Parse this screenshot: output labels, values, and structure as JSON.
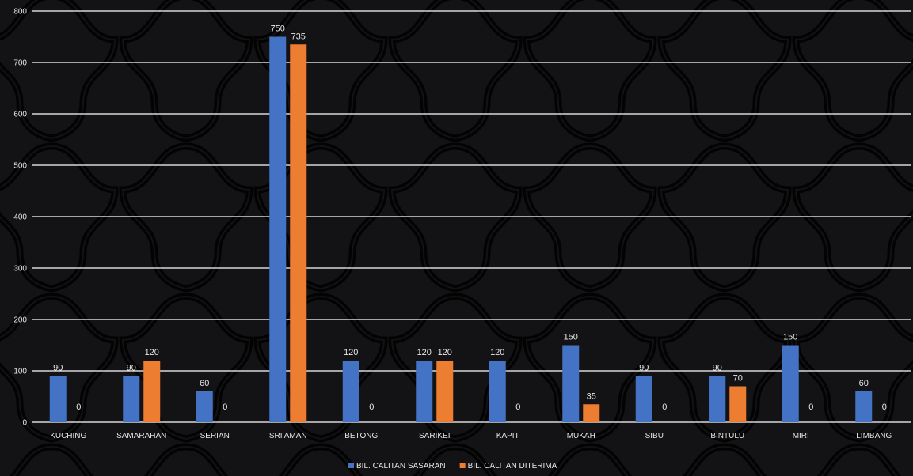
{
  "chart_data": {
    "type": "bar",
    "categories": [
      "KUCHING",
      "SAMARAHAN",
      "SERIAN",
      "SRI AMAN",
      "BETONG",
      "SARIKEI",
      "KAPIT",
      "MUKAH",
      "SIBU",
      "BINTULU",
      "MIRI",
      "LIMBANG"
    ],
    "series": [
      {
        "name": "BIL. CALITAN SASARAN",
        "color": "#4472c4",
        "values": [
          90,
          90,
          60,
          750,
          120,
          120,
          120,
          150,
          90,
          90,
          150,
          60
        ]
      },
      {
        "name": "BIL. CALITAN DITERIMA",
        "color": "#ed7d31",
        "values": [
          0,
          120,
          0,
          735,
          0,
          120,
          0,
          35,
          0,
          70,
          0,
          0
        ]
      }
    ],
    "ylim": [
      0,
      800
    ],
    "yticks": [
      0,
      100,
      200,
      300,
      400,
      500,
      600,
      700,
      800
    ],
    "grid": true,
    "legend": "bottom",
    "data_labels": true,
    "background": "#0e0e10",
    "gridline_color": "#ffffff",
    "label_color": "#e6e6e6"
  }
}
